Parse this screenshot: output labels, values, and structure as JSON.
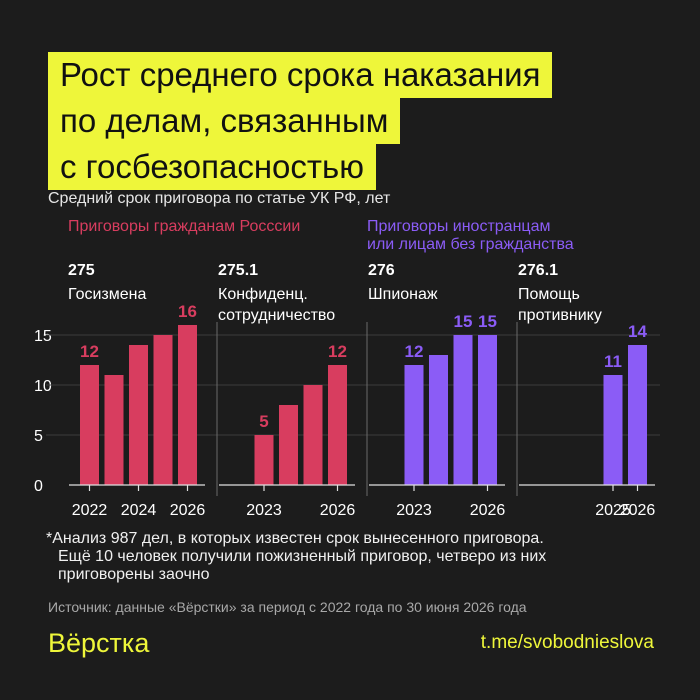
{
  "title_lines": [
    "Рост среднего срока наказания",
    "по делам, связанным",
    "с госбезопасностью"
  ],
  "subtitle": "Средний срок приговора по статье УК РФ, лет",
  "groups": {
    "citizens": {
      "label": "Приговоры гражданам Росссии",
      "color": "#d83d5f"
    },
    "foreigners": {
      "label_lines": [
        "Приговоры иностранцам",
        "или лицам без гражданства"
      ],
      "color": "#8b5cf6"
    }
  },
  "chart_data": [
    {
      "type": "bar",
      "article": "275",
      "name_lines": [
        "Госизмена"
      ],
      "color": "#d83d5f",
      "x": [
        2022,
        2023,
        2024,
        2025,
        2026
      ],
      "values": [
        12,
        11,
        14,
        15,
        16
      ],
      "value_labels": [
        "12",
        "",
        "",
        "",
        "16"
      ],
      "ylim": [
        0,
        17
      ],
      "yticks": [
        "0",
        "5",
        "10",
        "15"
      ],
      "xtick_labels": [
        "2022",
        "2024",
        "2026"
      ]
    },
    {
      "type": "bar",
      "article": "275.1",
      "name_lines": [
        "Конфиденц.",
        "сотрудничество"
      ],
      "color": "#d83d5f",
      "x": [
        2022,
        2023,
        2024,
        2025,
        2026
      ],
      "values": [
        0,
        5,
        8,
        10,
        12
      ],
      "value_labels": [
        "",
        "5",
        "",
        "",
        "12"
      ],
      "ylim": [
        0,
        17
      ],
      "xtick_labels": [
        "2023",
        "2026"
      ]
    },
    {
      "type": "bar",
      "article": "276",
      "name_lines": [
        "Шпионаж"
      ],
      "color": "#8b5cf6",
      "x": [
        2022,
        2023,
        2024,
        2025,
        2026
      ],
      "values": [
        0,
        12,
        13,
        15,
        15
      ],
      "value_labels": [
        "",
        "12",
        "",
        "15",
        "15"
      ],
      "ylim": [
        0,
        17
      ],
      "xtick_labels": [
        "2023",
        "2026"
      ]
    },
    {
      "type": "bar",
      "article": "276.1",
      "name_lines": [
        "Помощь",
        "противнику"
      ],
      "color": "#8b5cf6",
      "x": [
        2022,
        2023,
        2024,
        2025,
        2026
      ],
      "values": [
        0,
        0,
        0,
        11,
        14
      ],
      "value_labels": [
        "",
        "",
        "",
        "11",
        "14"
      ],
      "ylim": [
        0,
        17
      ],
      "xtick_labels": [
        "2025",
        "2026"
      ]
    }
  ],
  "footnote_lines": [
    "*Анализ 987 дел, в которых известен срок вынесенного приговора.",
    "Ещё 10 человек получили пожизненный приговор, четверо из них",
    "приговорены заочно"
  ],
  "source": "Источник: данные «Вёрстки» за период с 2022 года по 30 июня 2026 года",
  "logo": "Вёрстка",
  "link": "t.me/svobodnieslova"
}
